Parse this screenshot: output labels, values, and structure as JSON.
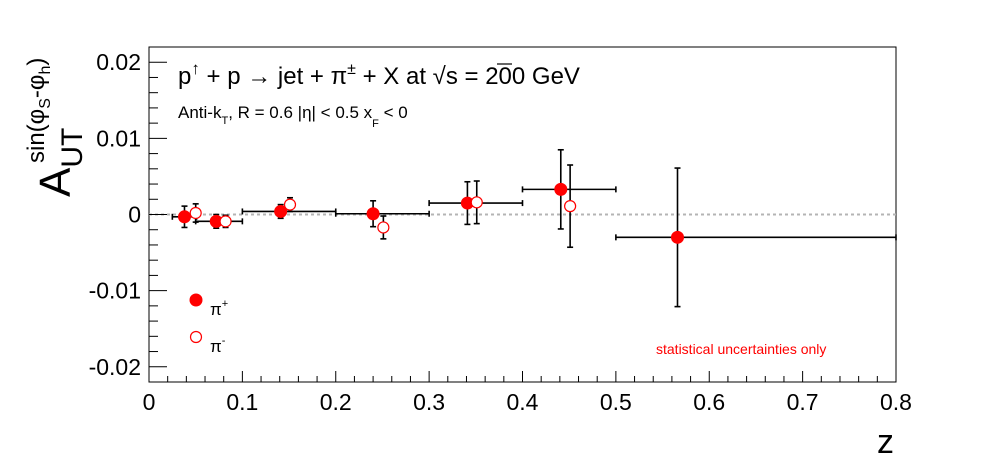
{
  "chart_data": {
    "type": "scatter",
    "title_parts": {
      "p": "p",
      "up_arrow": "↑",
      "plus1": " + p ",
      "arrow": "→",
      "jet": " jet + π",
      "pm": "±",
      "rest": " + X at ",
      "root": "√",
      "s_energy": "s = 200 GeV"
    },
    "subtitle_parts": {
      "antik": "Anti-k",
      "T": "T",
      "R": ", R = 0.6   |η| < 0.5   x",
      "F": "F",
      "lt": " < 0"
    },
    "ylabel_parts": {
      "A": "A",
      "UT": "UT",
      "sin_open": "sin(φ",
      "S": "S",
      "minus_phi": "-φ",
      "h": "h",
      "close": ")"
    },
    "xlabel": "z",
    "xlim": [
      0,
      0.8
    ],
    "ylim": [
      -0.022,
      0.022
    ],
    "x_ticks": [
      "0",
      "0.1",
      "0.2",
      "0.3",
      "0.4",
      "0.5",
      "0.6",
      "0.7",
      "0.8"
    ],
    "y_ticks": [
      "-0.02",
      "-0.01",
      "0",
      "0.01",
      "0.02"
    ],
    "zero_line": true,
    "legend_position": "bottom-left",
    "annotation": "statistical uncertainties only",
    "colors": {
      "marker": "#ff0000",
      "errorbar": "#000000",
      "zero_line": "#b4b4b4",
      "annotation": "#ff0000"
    },
    "series": [
      {
        "name": "π+",
        "name_base": "π",
        "name_sup": "+",
        "marker": "filled-circle",
        "points": [
          {
            "x": 0.038,
            "y": -0.0003,
            "xerr_lo": 0.013,
            "xerr_hi": 0.013,
            "yerr": 0.0014
          },
          {
            "x": 0.072,
            "y": -0.0009,
            "xerr_lo": 0.022,
            "xerr_hi": 0.028,
            "yerr": 0.0009
          },
          {
            "x": 0.141,
            "y": 0.0004,
            "xerr_lo": 0.041,
            "xerr_hi": 0.059,
            "yerr": 0.0009
          },
          {
            "x": 0.24,
            "y": 0.0001,
            "xerr_lo": 0.04,
            "xerr_hi": 0.06,
            "yerr": 0.0017
          },
          {
            "x": 0.341,
            "y": 0.0015,
            "xerr_lo": 0.041,
            "xerr_hi": 0.059,
            "yerr": 0.0028
          },
          {
            "x": 0.441,
            "y": 0.0033,
            "xerr_lo": 0.041,
            "xerr_hi": 0.059,
            "yerr": 0.0052
          },
          {
            "x": 0.566,
            "y": -0.003,
            "xerr_lo": 0.066,
            "xerr_hi": 0.234,
            "yerr": 0.0091
          }
        ]
      },
      {
        "name": "π-",
        "name_base": "π",
        "name_sup": "-",
        "marker": "open-circle",
        "points": [
          {
            "x": 0.05,
            "y": 0.0002,
            "yerr": 0.0012
          },
          {
            "x": 0.082,
            "y": -0.0009,
            "yerr": 0.0008
          },
          {
            "x": 0.151,
            "y": 0.0013,
            "yerr": 0.0009
          },
          {
            "x": 0.251,
            "y": -0.0017,
            "yerr": 0.0015
          },
          {
            "x": 0.351,
            "y": 0.0016,
            "yerr": 0.0028
          },
          {
            "x": 0.451,
            "y": 0.0011,
            "yerr": 0.0054
          }
        ]
      }
    ]
  }
}
